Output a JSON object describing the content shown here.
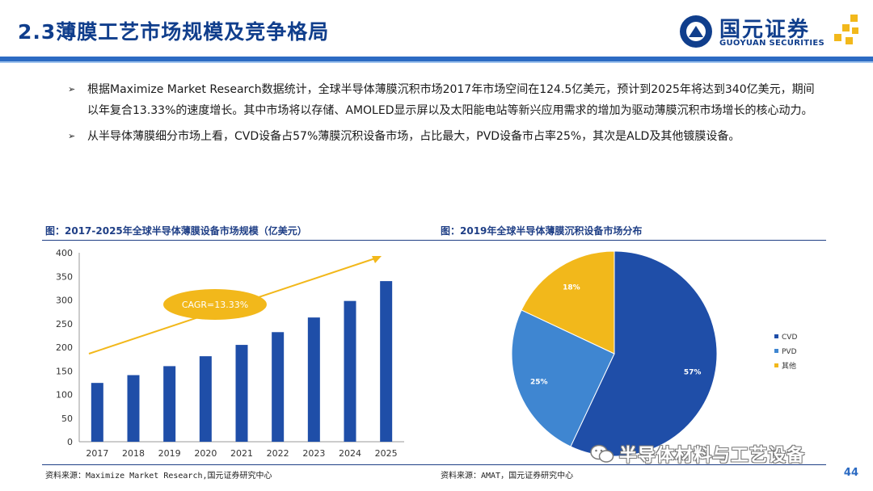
{
  "header": {
    "title": "2.3薄膜工艺市场规模及竞争格局",
    "logo_cn": "国元证券",
    "logo_en": "GUOYUAN SECURITIES",
    "brand_color": "#103e8c",
    "accent_color": "#2c6bc3",
    "gold_color": "#f2b81b"
  },
  "bullets": [
    "根据Maximize Market Research数据统计，全球半导体薄膜沉积市场2017年市场空间在124.5亿美元，预计到2025年将达到340亿美元，期间以年复合13.33%的速度增长。其中市场将以存储、AMOLED显示屏以及太阳能电站等新兴应用需求的增加为驱动薄膜沉积市场增长的核心动力。",
    "从半导体薄膜细分市场上看，CVD设备占57%薄膜沉积设备市场，占比最大，PVD设备市占率25%，其次是ALD及其他镀膜设备。"
  ],
  "figures": {
    "left_title": "图：2017-2025年全球半导体薄膜设备市场规模（亿美元）",
    "right_title": "图：2019年全球半导体薄膜沉积设备市场分布",
    "left_source": "资料来源：Maximize Market Research,国元证券研究中心",
    "right_source": "资料来源：AMAT，国元证券研究中心"
  },
  "chart_data": [
    {
      "type": "bar",
      "categories": [
        "2017",
        "2018",
        "2019",
        "2020",
        "2021",
        "2022",
        "2023",
        "2024",
        "2025"
      ],
      "values": [
        124.5,
        141,
        160,
        181,
        205,
        232,
        263,
        298,
        340
      ],
      "ylim": [
        0,
        400
      ],
      "yticks": [
        0,
        50,
        100,
        150,
        200,
        250,
        300,
        350,
        400
      ],
      "annotation": "CAGR=13.33%",
      "bar_color": "#1f4ea8",
      "annotation_color": "#f2b81b",
      "grid": false
    },
    {
      "type": "pie",
      "labels": [
        "CVD",
        "PVD",
        "其他"
      ],
      "values": [
        57,
        25,
        18
      ],
      "label_texts": [
        "57%",
        "25%",
        "18%"
      ],
      "colors": [
        "#1f4ea8",
        "#3f86d1",
        "#f2b81b"
      ],
      "legend": "right"
    }
  ],
  "footer": {
    "page": "44",
    "watermark": "半导体材料与工艺设备"
  }
}
